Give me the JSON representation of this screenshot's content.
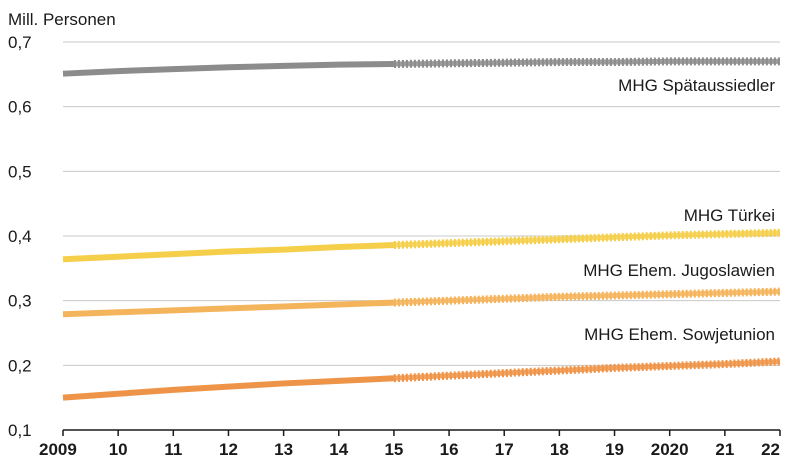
{
  "chart_data": {
    "type": "line",
    "ylabel": "Mill. Personen",
    "ylim": [
      0.1,
      0.7
    ],
    "yticks": [
      0.1,
      0.2,
      0.3,
      0.4,
      0.5,
      0.6,
      0.7
    ],
    "ytick_labels": [
      "0,1",
      "0,2",
      "0,3",
      "0,4",
      "0,5",
      "0,6",
      "0,7"
    ],
    "x": [
      2009,
      2010,
      2011,
      2012,
      2013,
      2014,
      2015,
      2016,
      2017,
      2018,
      2019,
      2020,
      2021,
      2022
    ],
    "xtick_labels": [
      "2009",
      "10",
      "11",
      "12",
      "13",
      "14",
      "15",
      "16",
      "17",
      "18",
      "19",
      "2020",
      "21",
      "22"
    ],
    "grid": true,
    "projection_start": 2015,
    "series": [
      {
        "name": "MHG Spätaussiedler",
        "color": "#8c8c8c",
        "values": [
          0.651,
          0.655,
          0.658,
          0.661,
          0.663,
          0.665,
          0.666,
          0.667,
          0.668,
          0.669,
          0.669,
          0.67,
          0.67,
          0.67
        ]
      },
      {
        "name": "MHG Türkei",
        "color": "#f5cf4a",
        "values": [
          0.364,
          0.368,
          0.372,
          0.376,
          0.379,
          0.383,
          0.386,
          0.389,
          0.392,
          0.395,
          0.398,
          0.401,
          0.403,
          0.405
        ]
      },
      {
        "name": "MHG Ehem. Jugoslawien",
        "color": "#f4b45c",
        "values": [
          0.279,
          0.282,
          0.285,
          0.288,
          0.291,
          0.294,
          0.297,
          0.3,
          0.303,
          0.306,
          0.308,
          0.31,
          0.312,
          0.314
        ]
      },
      {
        "name": "MHG Ehem. Sowjetunion",
        "color": "#ee9448",
        "values": [
          0.15,
          0.156,
          0.162,
          0.167,
          0.172,
          0.176,
          0.18,
          0.184,
          0.188,
          0.192,
          0.196,
          0.199,
          0.202,
          0.206
        ]
      }
    ]
  }
}
